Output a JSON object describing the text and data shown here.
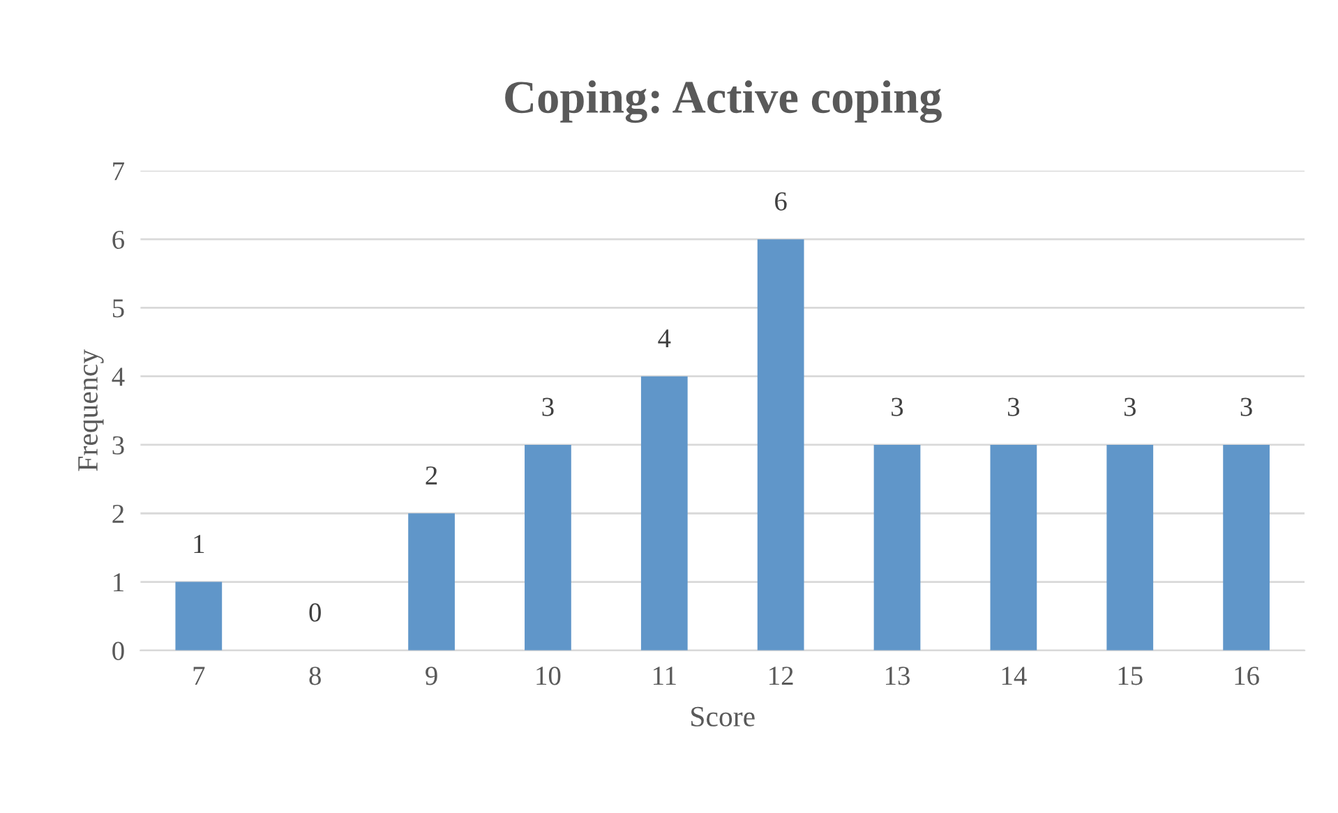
{
  "chart_data": {
    "type": "bar",
    "title": "Coping: Active coping",
    "xlabel": "Score",
    "ylabel": "Frequency",
    "categories": [
      "7",
      "8",
      "9",
      "10",
      "11",
      "12",
      "13",
      "14",
      "15",
      "16"
    ],
    "values": [
      1,
      0,
      2,
      3,
      4,
      6,
      3,
      3,
      3,
      3
    ],
    "color": "#6096c9",
    "ylim": [
      0,
      7
    ],
    "yticks": [
      0,
      1,
      2,
      3,
      4,
      5,
      6,
      7
    ],
    "grid": "y",
    "data_labels": true,
    "legend": false
  }
}
